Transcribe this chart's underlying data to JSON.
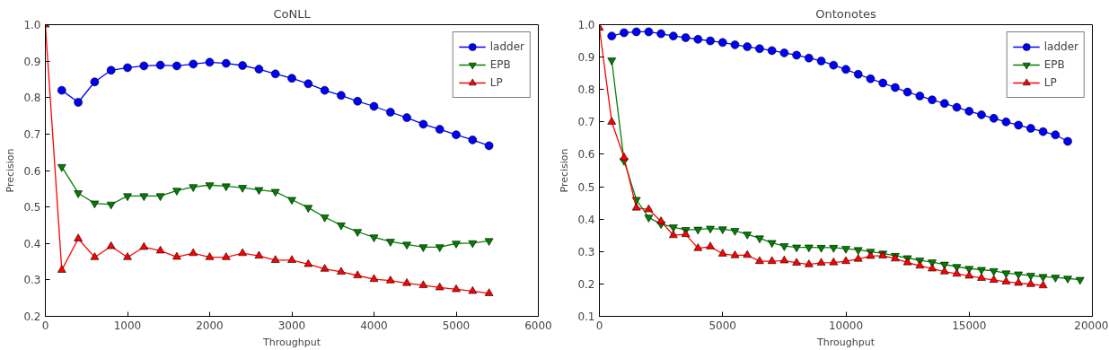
{
  "chart_data": [
    {
      "type": "line",
      "title": "CoNLL",
      "xlabel": "Throughput",
      "ylabel": "Precision",
      "xlim": [
        0,
        6000
      ],
      "ylim": [
        0.2,
        1.0
      ],
      "xticks": [
        0,
        1000,
        2000,
        3000,
        4000,
        5000,
        6000
      ],
      "yticks": [
        0.2,
        0.3,
        0.4,
        0.5,
        0.6,
        0.7,
        0.8,
        0.9,
        {
          "value": 1.0,
          "label": "1.0"
        }
      ],
      "grid": false,
      "legend": "top right",
      "series": [
        {
          "name": "ladder",
          "color": "#0000ff",
          "marker": "circle",
          "x": [
            200,
            400,
            600,
            800,
            1000,
            1200,
            1400,
            1600,
            1800,
            2000,
            2200,
            2400,
            2600,
            2800,
            3000,
            3200,
            3400,
            3600,
            3800,
            4000,
            4200,
            4400,
            4600,
            4800,
            5000,
            5200,
            5400
          ],
          "values": [
            0.82,
            0.787,
            0.843,
            0.875,
            0.882,
            0.887,
            0.889,
            0.887,
            0.892,
            0.897,
            0.894,
            0.888,
            0.878,
            0.865,
            0.853,
            0.838,
            0.82,
            0.806,
            0.79,
            0.776,
            0.76,
            0.745,
            0.727,
            0.713,
            0.698,
            0.684,
            0.668
          ]
        },
        {
          "name": "EPB",
          "color": "#008000",
          "marker": "triangle_down",
          "x": [
            200,
            400,
            600,
            800,
            1000,
            1200,
            1400,
            1600,
            1800,
            2000,
            2200,
            2400,
            2600,
            2800,
            3000,
            3200,
            3400,
            3600,
            3800,
            4000,
            4200,
            4400,
            4600,
            4800,
            5000,
            5200,
            5400
          ],
          "values": [
            0.61,
            0.538,
            0.51,
            0.507,
            0.53,
            0.53,
            0.53,
            0.545,
            0.555,
            0.56,
            0.557,
            0.553,
            0.547,
            0.542,
            0.52,
            0.498,
            0.472,
            0.45,
            0.432,
            0.417,
            0.405,
            0.397,
            0.39,
            0.39,
            0.4,
            0.401,
            0.407
          ]
        },
        {
          "name": "LP",
          "color": "#ff0000",
          "marker": "triangle",
          "x": [
            0,
            200,
            400,
            600,
            800,
            1000,
            1200,
            1400,
            1600,
            1800,
            2000,
            2200,
            2400,
            2600,
            2800,
            3000,
            3200,
            3400,
            3600,
            3800,
            4000,
            4200,
            4400,
            4600,
            4800,
            5000,
            5200,
            5400
          ],
          "values": [
            1.0,
            0.327,
            0.413,
            0.362,
            0.392,
            0.362,
            0.39,
            0.38,
            0.363,
            0.373,
            0.362,
            0.362,
            0.373,
            0.366,
            0.354,
            0.354,
            0.343,
            0.33,
            0.322,
            0.312,
            0.302,
            0.298,
            0.291,
            0.285,
            0.279,
            0.274,
            0.269,
            0.263
          ]
        }
      ]
    },
    {
      "type": "line",
      "title": "Ontonotes",
      "xlabel": "Throughput",
      "ylabel": "Precision",
      "xlim": [
        0,
        20000
      ],
      "ylim": [
        0.1,
        1.0
      ],
      "xticks": [
        0,
        5000,
        10000,
        15000,
        20000
      ],
      "yticks": [
        0.1,
        0.2,
        0.3,
        0.4,
        0.5,
        0.6,
        0.7,
        0.8,
        0.9,
        {
          "value": 1.0,
          "label": "1.0"
        }
      ],
      "grid": false,
      "legend": "top right",
      "series": [
        {
          "name": "ladder",
          "color": "#0000ff",
          "marker": "circle",
          "x": [
            500,
            1000,
            1500,
            2000,
            2500,
            3000,
            3500,
            4000,
            4500,
            5000,
            5500,
            6000,
            6500,
            7000,
            7500,
            8000,
            8500,
            9000,
            9500,
            10000,
            10500,
            11000,
            11500,
            12000,
            12500,
            13000,
            13500,
            14000,
            14500,
            15000,
            15500,
            16000,
            16500,
            17000,
            17500,
            18000,
            18500,
            19000
          ],
          "values": [
            0.965,
            0.975,
            0.978,
            0.978,
            0.972,
            0.965,
            0.96,
            0.955,
            0.95,
            0.945,
            0.938,
            0.932,
            0.926,
            0.92,
            0.913,
            0.906,
            0.897,
            0.888,
            0.875,
            0.862,
            0.847,
            0.833,
            0.82,
            0.806,
            0.792,
            0.78,
            0.768,
            0.757,
            0.745,
            0.733,
            0.722,
            0.711,
            0.7,
            0.69,
            0.68,
            0.67,
            0.66,
            0.64
          ]
        },
        {
          "name": "EPB",
          "color": "#008000",
          "marker": "triangle_down",
          "x": [
            500,
            1000,
            1500,
            2000,
            2500,
            3000,
            3500,
            4000,
            4500,
            5000,
            5500,
            6000,
            6500,
            7000,
            7500,
            8000,
            8500,
            9000,
            9500,
            10000,
            10500,
            11000,
            11500,
            12000,
            12500,
            13000,
            13500,
            14000,
            14500,
            15000,
            15500,
            16000,
            16500,
            17000,
            17500,
            18000,
            18500,
            19000,
            19500
          ],
          "values": [
            0.89,
            0.58,
            0.46,
            0.405,
            0.385,
            0.375,
            0.367,
            0.368,
            0.371,
            0.369,
            0.364,
            0.353,
            0.341,
            0.327,
            0.317,
            0.313,
            0.313,
            0.312,
            0.312,
            0.309,
            0.305,
            0.3,
            0.294,
            0.287,
            0.28,
            0.273,
            0.267,
            0.26,
            0.253,
            0.247,
            0.244,
            0.24,
            0.233,
            0.23,
            0.226,
            0.222,
            0.22,
            0.217,
            0.213
          ]
        },
        {
          "name": "LP",
          "color": "#ff0000",
          "marker": "triangle",
          "x": [
            0,
            500,
            1000,
            1500,
            2000,
            2500,
            3000,
            3500,
            4000,
            4500,
            5000,
            5500,
            6000,
            6500,
            7000,
            7500,
            8000,
            8500,
            9000,
            9500,
            10000,
            10500,
            11000,
            11500,
            12000,
            12500,
            13000,
            13500,
            14000,
            14500,
            15000,
            15500,
            16000,
            16500,
            17000,
            17500,
            18000
          ],
          "values": [
            0.99,
            0.7,
            0.59,
            0.435,
            0.43,
            0.393,
            0.35,
            0.353,
            0.31,
            0.315,
            0.293,
            0.288,
            0.289,
            0.27,
            0.27,
            0.272,
            0.265,
            0.26,
            0.265,
            0.266,
            0.27,
            0.277,
            0.286,
            0.287,
            0.278,
            0.266,
            0.256,
            0.247,
            0.238,
            0.231,
            0.225,
            0.218,
            0.212,
            0.207,
            0.203,
            0.199,
            0.195
          ]
        }
      ]
    }
  ]
}
